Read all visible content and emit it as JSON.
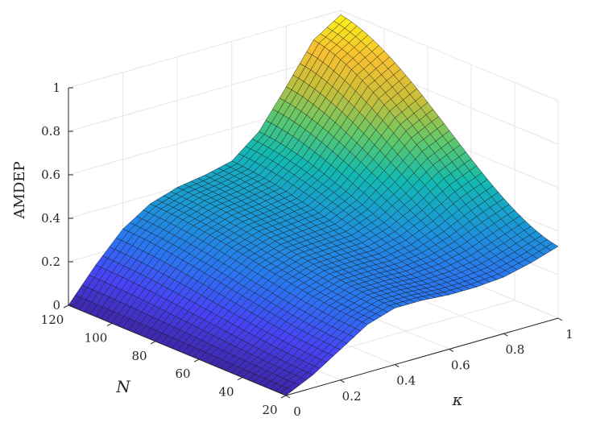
{
  "chart_data": {
    "type": "surface",
    "zlabel": "AMDEP",
    "ylabel": "N",
    "xlabel": "κ",
    "x_axis": {
      "label": "κ",
      "range": [
        0,
        1
      ],
      "ticks": [
        "0",
        "0.2",
        "0.4",
        "0.6",
        "0.8",
        "1"
      ]
    },
    "y_axis": {
      "label": "N",
      "range": [
        20,
        120
      ],
      "ticks": [
        "20",
        "40",
        "60",
        "80",
        "100",
        "120"
      ]
    },
    "z_axis": {
      "label": "AMDEP",
      "range": [
        0,
        1
      ],
      "ticks": [
        "0",
        "0.2",
        "0.4",
        "0.6",
        "0.8",
        "1"
      ]
    },
    "grid": true,
    "colormap": [
      "#3e26a8",
      "#4743f6",
      "#2b75f2",
      "#1b98d5",
      "#12bab0",
      "#61c86a",
      "#c7bf3a",
      "#f8c030",
      "#f9fb15"
    ],
    "corners": [
      {
        "kappa": 0,
        "N": 20,
        "AMDEP": 0.0
      },
      {
        "kappa": 0,
        "N": 120,
        "AMDEP": 0.0
      },
      {
        "kappa": 1,
        "N": 20,
        "AMDEP": 0.33
      },
      {
        "kappa": 1,
        "N": 120,
        "AMDEP": 0.98
      }
    ],
    "kappa_profile": {
      "kappa": [
        0,
        0.1,
        0.2,
        0.3,
        0.4,
        0.5,
        0.6,
        0.7,
        0.8,
        0.9,
        1.0
      ],
      "AMDEP_at_N20": [
        0.0,
        0.06,
        0.14,
        0.22,
        0.26,
        0.26,
        0.25,
        0.25,
        0.26,
        0.29,
        0.33
      ],
      "AMDEP_at_N120": [
        0.0,
        0.15,
        0.28,
        0.36,
        0.4,
        0.42,
        0.45,
        0.55,
        0.72,
        0.9,
        0.98
      ]
    }
  }
}
